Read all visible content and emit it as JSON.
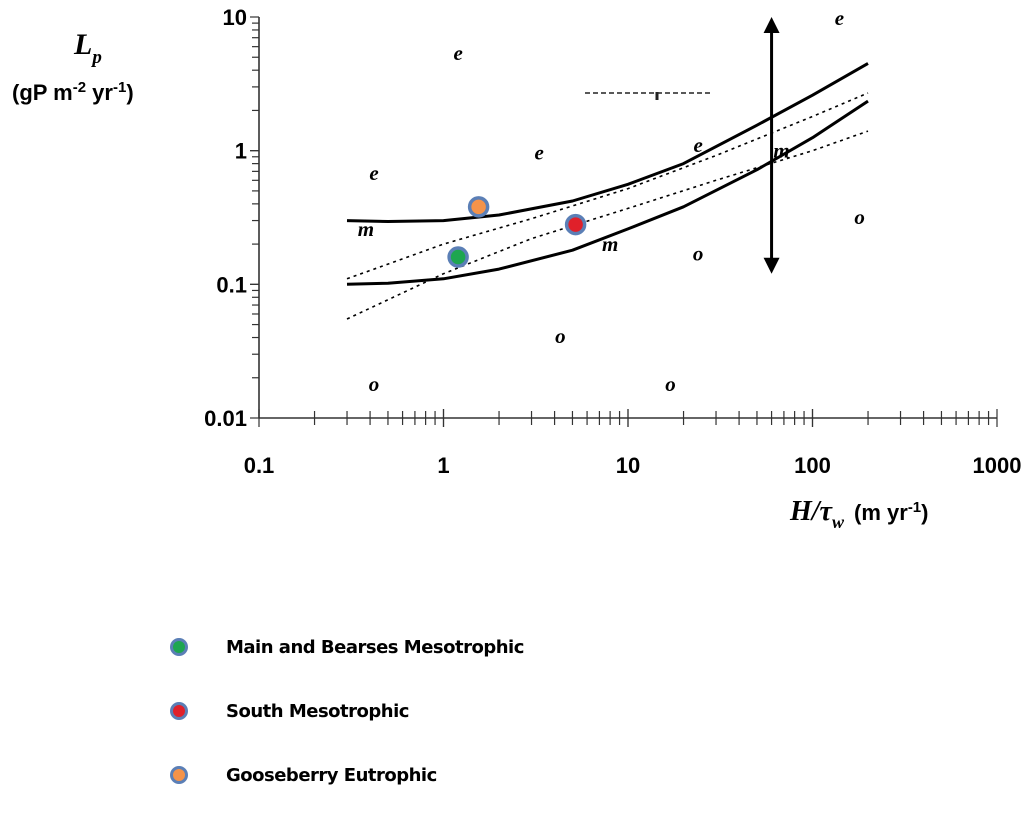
{
  "chart_data": {
    "type": "scatter",
    "x_scale": "log",
    "y_scale": "log",
    "xlim": [
      0.1,
      1000
    ],
    "ylim": [
      0.01,
      10
    ],
    "x_ticks": [
      "0.1",
      "1",
      "10",
      "100",
      "1000"
    ],
    "y_ticks": [
      "0.01",
      "0.1",
      "1",
      "10"
    ],
    "ylabel": {
      "symbol": "L",
      "sub": "p",
      "units": "(gP m-2 yr-1)"
    },
    "xlabel": {
      "symbol": "H/τ",
      "sub": "w",
      "units": "(m yr-1)"
    },
    "grid": false,
    "legend_position": "bottom-left",
    "boundary_lines": [
      {
        "name": "upper",
        "style": "solid",
        "x": [
          0.3,
          0.5,
          1,
          2,
          5,
          10,
          20,
          50,
          100,
          200
        ],
        "y": [
          0.3,
          0.295,
          0.3,
          0.33,
          0.42,
          0.56,
          0.8,
          1.55,
          2.6,
          4.5
        ]
      },
      {
        "name": "lower",
        "style": "solid",
        "x": [
          0.3,
          0.5,
          1,
          2,
          5,
          10,
          20,
          50,
          100,
          200
        ],
        "y": [
          0.1,
          0.102,
          0.11,
          0.13,
          0.18,
          0.26,
          0.38,
          0.72,
          1.25,
          2.35
        ]
      },
      {
        "name": "upper-dotted",
        "style": "dotted",
        "x": [
          0.3,
          1,
          3,
          10,
          30,
          100,
          200
        ],
        "y": [
          0.11,
          0.2,
          0.31,
          0.52,
          0.92,
          1.8,
          2.7
        ]
      },
      {
        "name": "lower-dotted",
        "style": "dotted",
        "x": [
          0.3,
          1,
          3,
          10,
          30,
          100,
          200
        ],
        "y": [
          0.055,
          0.12,
          0.22,
          0.37,
          0.6,
          1.0,
          1.4
        ]
      }
    ],
    "arrow": {
      "x": 60,
      "y_top": 10,
      "y_bottom": 0.12
    },
    "region_labels": [
      {
        "text": "e",
        "x": 1.2,
        "y": 5.4
      },
      {
        "text": "e",
        "x": 0.42,
        "y": 0.68
      },
      {
        "text": "e",
        "x": 3.3,
        "y": 0.97
      },
      {
        "text": "e",
        "x": 24,
        "y": 1.1
      },
      {
        "text": "e",
        "x": 140,
        "y": 9.8
      },
      {
        "text": "m",
        "x": 0.38,
        "y": 0.26
      },
      {
        "text": "m",
        "x": 8,
        "y": 0.2
      },
      {
        "text": "m",
        "x": 68,
        "y": 1.0
      },
      {
        "text": "o",
        "x": 0.42,
        "y": 0.018
      },
      {
        "text": "o",
        "x": 4.3,
        "y": 0.041
      },
      {
        "text": "o",
        "x": 17,
        "y": 0.018
      },
      {
        "text": "o",
        "x": 24,
        "y": 0.17
      },
      {
        "text": "o",
        "x": 180,
        "y": 0.32
      }
    ],
    "series": [
      {
        "name": "Main and Bearses Mesotrophic",
        "color": "#1ea650",
        "x": [
          1.2
        ],
        "y": [
          0.16
        ]
      },
      {
        "name": "South Mesotrophic",
        "color": "#e0202a",
        "x": [
          5.2
        ],
        "y": [
          0.28
        ]
      },
      {
        "name": "Gooseberry Eutrophic",
        "color": "#f4934a",
        "x": [
          1.55
        ],
        "y": [
          0.38
        ]
      }
    ],
    "marker_edge_color": "#5b7fb6"
  }
}
